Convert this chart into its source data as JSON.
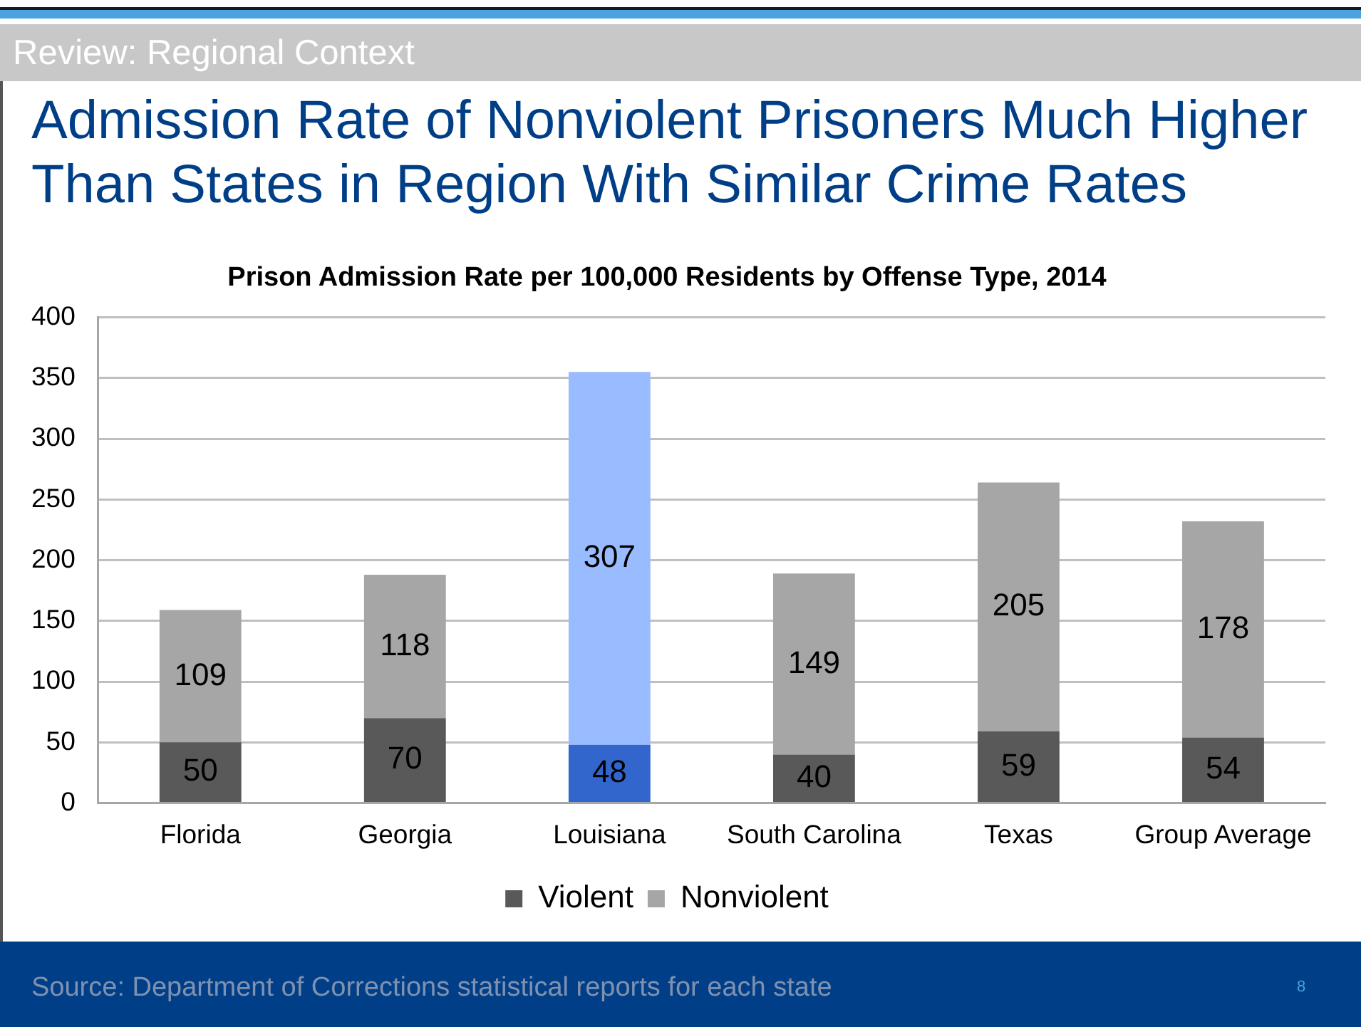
{
  "chart_data": {
    "type": "bar",
    "title": "Admission Rate of Nonviolent Prisoners Much Higher Than States in Region With Similar Crime Rates",
    "subtitle": "Prison Admission Rate per 100,000 Residents by Offense Type, 2014",
    "categories": [
      "Florida",
      "Georgia",
      "Louisiana",
      "South Carolina",
      "Texas",
      "Group Average"
    ],
    "series": [
      {
        "name": "Violent",
        "color": "#595959",
        "colors": [
          "#595959",
          "#595959",
          "#3366cc",
          "#595959",
          "#595959",
          "#595959"
        ],
        "values": [
          50,
          70,
          48,
          40,
          59,
          54
        ]
      },
      {
        "name": "Nonviolent",
        "color": "#a6a6a6",
        "colors": [
          "#a6a6a6",
          "#a6a6a6",
          "#99bbff",
          "#a6a6a6",
          "#a6a6a6",
          "#a6a6a6"
        ],
        "values": [
          109,
          118,
          307,
          149,
          205,
          178
        ]
      }
    ],
    "stacked": true,
    "ylim": [
      0,
      400
    ],
    "yticks": [
      0,
      50,
      100,
      150,
      200,
      250,
      300,
      350,
      400
    ],
    "grid": "y",
    "legend": "bottom",
    "data_labels": true,
    "annotations": [
      "Review: Regional Context",
      "Source: Department of Corrections statistical reports for each state",
      "8"
    ]
  }
}
